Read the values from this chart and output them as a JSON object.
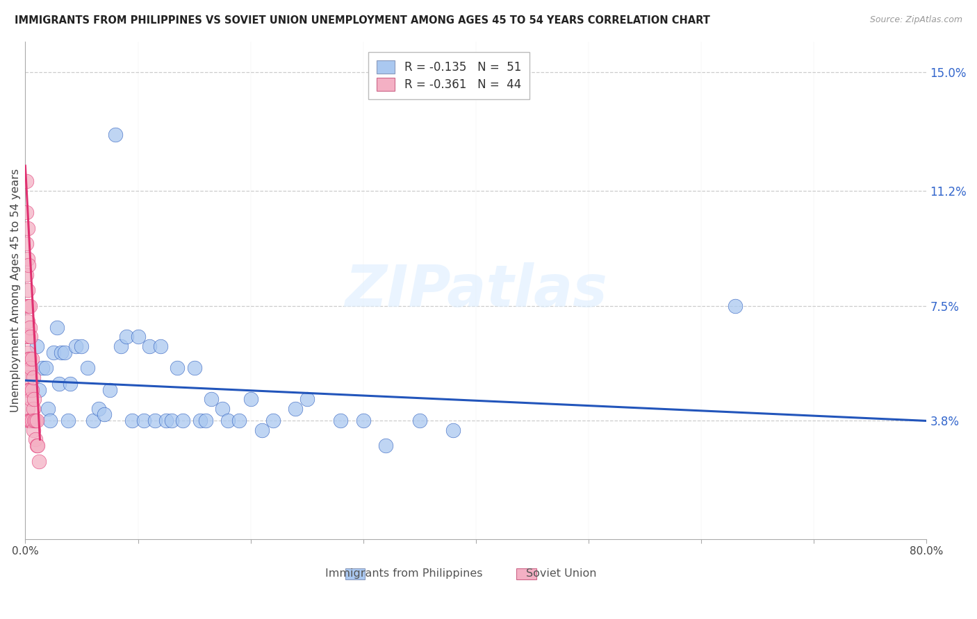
{
  "title": "IMMIGRANTS FROM PHILIPPINES VS SOVIET UNION UNEMPLOYMENT AMONG AGES 45 TO 54 YEARS CORRELATION CHART",
  "source": "Source: ZipAtlas.com",
  "ylabel": "Unemployment Among Ages 45 to 54 years",
  "xlim": [
    0.0,
    0.8
  ],
  "ylim": [
    0.0,
    0.16
  ],
  "xticks": [
    0.0,
    0.1,
    0.2,
    0.3,
    0.4,
    0.5,
    0.6,
    0.7,
    0.8
  ],
  "xticklabels": [
    "0.0%",
    "",
    "",
    "",
    "",
    "",
    "",
    "",
    "80.0%"
  ],
  "ytick_positions": [
    0.038,
    0.075,
    0.112,
    0.15
  ],
  "ytick_labels": [
    "3.8%",
    "7.5%",
    "11.2%",
    "15.0%"
  ],
  "legend_r_philippines": "-0.135",
  "legend_n_philippines": "51",
  "legend_r_soviet": "-0.361",
  "legend_n_soviet": "44",
  "legend_label_philippines": "Immigrants from Philippines",
  "legend_label_soviet": "Soviet Union",
  "color_philippines": "#aac8f0",
  "color_soviet": "#f4b0c4",
  "color_trend_philippines": "#2255bb",
  "color_trend_soviet": "#e03070",
  "philippines_x": [
    0.01,
    0.012,
    0.015,
    0.018,
    0.02,
    0.022,
    0.025,
    0.028,
    0.03,
    0.032,
    0.035,
    0.038,
    0.04,
    0.045,
    0.05,
    0.055,
    0.06,
    0.065,
    0.07,
    0.075,
    0.08,
    0.085,
    0.09,
    0.095,
    0.1,
    0.105,
    0.11,
    0.115,
    0.12,
    0.125,
    0.13,
    0.135,
    0.14,
    0.15,
    0.155,
    0.16,
    0.165,
    0.175,
    0.18,
    0.19,
    0.2,
    0.21,
    0.22,
    0.24,
    0.25,
    0.28,
    0.3,
    0.32,
    0.35,
    0.38,
    0.63
  ],
  "philippines_y": [
    0.062,
    0.048,
    0.055,
    0.055,
    0.042,
    0.038,
    0.06,
    0.068,
    0.05,
    0.06,
    0.06,
    0.038,
    0.05,
    0.062,
    0.062,
    0.055,
    0.038,
    0.042,
    0.04,
    0.048,
    0.13,
    0.062,
    0.065,
    0.038,
    0.065,
    0.038,
    0.062,
    0.038,
    0.062,
    0.038,
    0.038,
    0.055,
    0.038,
    0.055,
    0.038,
    0.038,
    0.045,
    0.042,
    0.038,
    0.038,
    0.045,
    0.035,
    0.038,
    0.042,
    0.045,
    0.038,
    0.038,
    0.03,
    0.038,
    0.035,
    0.075
  ],
  "soviet_x": [
    0.001,
    0.001,
    0.001,
    0.001,
    0.001,
    0.001,
    0.001,
    0.001,
    0.002,
    0.002,
    0.002,
    0.002,
    0.002,
    0.002,
    0.002,
    0.003,
    0.003,
    0.003,
    0.003,
    0.003,
    0.003,
    0.004,
    0.004,
    0.004,
    0.004,
    0.004,
    0.005,
    0.005,
    0.005,
    0.005,
    0.006,
    0.006,
    0.006,
    0.007,
    0.007,
    0.007,
    0.008,
    0.008,
    0.009,
    0.009,
    0.01,
    0.01,
    0.011,
    0.012
  ],
  "soviet_y": [
    0.115,
    0.105,
    0.095,
    0.085,
    0.075,
    0.065,
    0.055,
    0.048,
    0.1,
    0.09,
    0.08,
    0.07,
    0.06,
    0.052,
    0.042,
    0.088,
    0.075,
    0.065,
    0.058,
    0.048,
    0.038,
    0.075,
    0.068,
    0.058,
    0.048,
    0.038,
    0.065,
    0.055,
    0.045,
    0.038,
    0.058,
    0.048,
    0.038,
    0.052,
    0.042,
    0.035,
    0.045,
    0.038,
    0.038,
    0.032,
    0.038,
    0.03,
    0.03,
    0.025
  ],
  "trend_phil_x0": 0.0,
  "trend_phil_x1": 0.8,
  "trend_phil_y0": 0.051,
  "trend_phil_y1": 0.038,
  "trend_sov_x0": 0.0,
  "trend_sov_x1": 0.013,
  "trend_sov_y0": 0.12,
  "trend_sov_y1": 0.032,
  "watermark_text": "ZIPatlas",
  "background_color": "#ffffff",
  "grid_color": "#cccccc"
}
